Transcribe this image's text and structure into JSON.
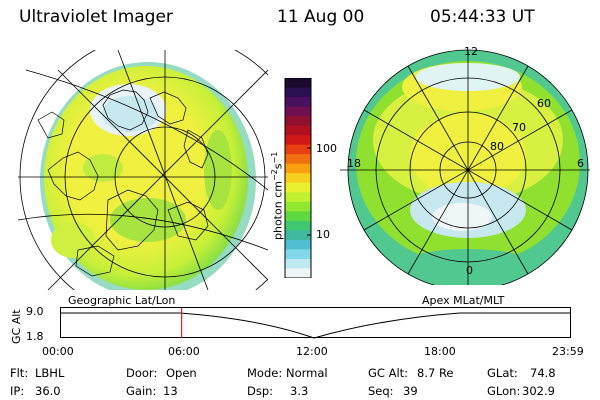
{
  "header": {
    "instrument": "Ultraviolet Imager",
    "date": "11 Aug 00",
    "time": "05:44:33 UT"
  },
  "colorbar": {
    "unit_label": "photon cm",
    "unit_exp1": "−2",
    "unit_mid": "s",
    "unit_exp2": "−1",
    "ticks": [
      "100",
      "10"
    ],
    "colors": [
      "#1a0a2e",
      "#2a1050",
      "#4a1060",
      "#701050",
      "#901030",
      "#b01020",
      "#d01818",
      "#e84010",
      "#f07010",
      "#f8a010",
      "#f8d020",
      "#e8f030",
      "#c0f030",
      "#90e830",
      "#60d840",
      "#40c870",
      "#40b8a0",
      "#50c0d0",
      "#80d8e8",
      "#c0e8f0",
      "#eef6f8"
    ]
  },
  "left_panel": {
    "label": "Geographic Lat/Lon"
  },
  "right_panel": {
    "label": "Apex MLat/MLT",
    "mlt_labels": {
      "top": "12",
      "left": "18",
      "right": "6",
      "bottom": "0"
    },
    "lat_labels": [
      "60",
      "70",
      "80"
    ]
  },
  "altitude_plot": {
    "y_axis_title": "GC Alt",
    "y_ticks": [
      "9.0",
      "1.8"
    ],
    "x_ticks": [
      "00:00",
      "06:00",
      "12:00",
      "18:00",
      "23:59"
    ],
    "current_time_fraction": 0.238,
    "marker_color": "#e02020"
  },
  "status": {
    "filter": {
      "label": "Flt:",
      "value": "LBHL"
    },
    "door": {
      "label": "Door:",
      "value": "Open"
    },
    "mode": {
      "label": "Mode:",
      "value": "Normal"
    },
    "gc_alt": {
      "label": "GC Alt:",
      "value": "8.7 Re"
    },
    "glat": {
      "label": "GLat:",
      "value": "74.8"
    },
    "ip": {
      "label": "IP:",
      "value": "36.0"
    },
    "gain": {
      "label": "Gain:",
      "value": "13"
    },
    "dsp": {
      "label": "Dsp:",
      "value": "3.3"
    },
    "seq": {
      "label": "Seq:",
      "value": "39"
    },
    "glon": {
      "label": "GLon:",
      "value": "302.9"
    }
  }
}
